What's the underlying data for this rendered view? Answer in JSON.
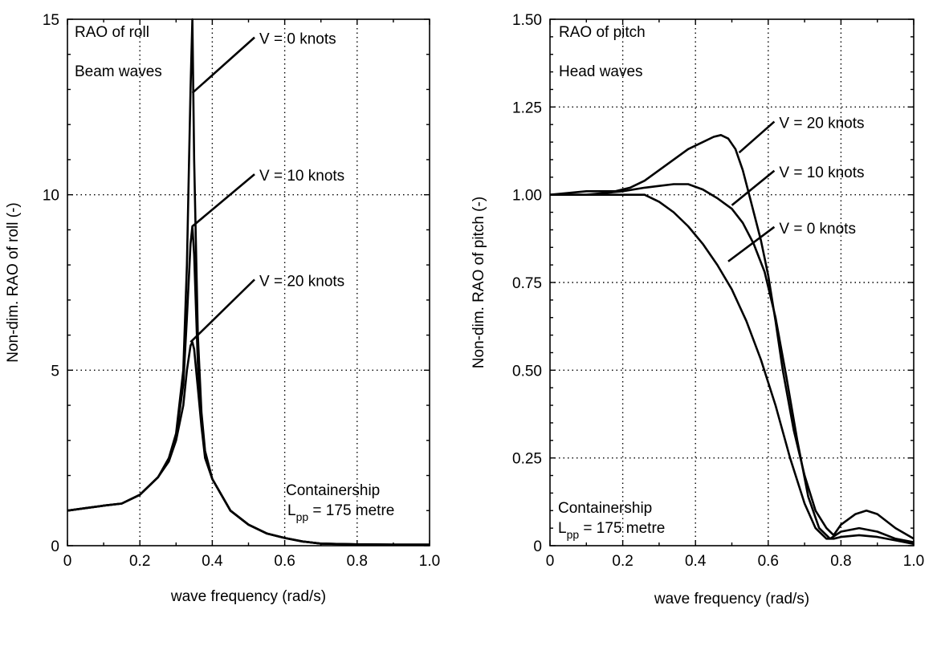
{
  "chart_data": [
    {
      "type": "line",
      "xlabel": "wave frequency (rad/s)",
      "ylabel": "Non-dim. RAO of roll (-)",
      "xlim": [
        0,
        1.0
      ],
      "ylim": [
        0,
        15
      ],
      "xticks": [
        0,
        0.2,
        0.4,
        0.6,
        0.8,
        1.0
      ],
      "xtick_labels": [
        "0",
        "0.2",
        "0.4",
        "0.6",
        "0.8",
        "1.0"
      ],
      "yticks": [
        0,
        5,
        10,
        15
      ],
      "ytick_labels": [
        "0",
        "5",
        "10",
        "15"
      ],
      "grid": true,
      "annotations": {
        "title_line1": "RAO of roll",
        "title_line2": "Beam waves",
        "ship_line1": "Containership",
        "ship_L": "L",
        "ship_sub": "pp",
        "ship_rest": " = 175 metre"
      },
      "series": [
        {
          "label": "V = 0 knots",
          "label_at": [
            0.53,
            14.3
          ],
          "leader_to": [
            0.345,
            12.9
          ],
          "x": [
            0,
            0.05,
            0.1,
            0.15,
            0.2,
            0.25,
            0.28,
            0.3,
            0.32,
            0.33,
            0.34,
            0.345,
            0.35,
            0.36,
            0.37,
            0.38,
            0.4,
            0.45,
            0.5,
            0.55,
            0.6,
            0.65,
            0.7,
            0.8,
            0.9,
            1.0
          ],
          "y": [
            1.0,
            1.07,
            1.14,
            1.2,
            1.45,
            1.95,
            2.5,
            3.2,
            5.0,
            8.0,
            13.0,
            15.0,
            11.0,
            6.0,
            3.8,
            2.7,
            1.9,
            1.0,
            0.6,
            0.35,
            0.22,
            0.12,
            0.06,
            0.04,
            0.03,
            0.03
          ]
        },
        {
          "label": "V = 10 knots",
          "label_at": [
            0.53,
            10.4
          ],
          "leader_to": [
            0.345,
            9.1
          ],
          "x": [
            0,
            0.05,
            0.1,
            0.15,
            0.2,
            0.25,
            0.28,
            0.3,
            0.32,
            0.33,
            0.34,
            0.345,
            0.35,
            0.36,
            0.37,
            0.38,
            0.4,
            0.45,
            0.5,
            0.55,
            0.6,
            0.65,
            0.7,
            0.8,
            0.9,
            1.0
          ],
          "y": [
            1.0,
            1.07,
            1.14,
            1.2,
            1.45,
            1.95,
            2.45,
            3.1,
            4.6,
            6.5,
            8.6,
            9.1,
            8.3,
            5.2,
            3.6,
            2.6,
            1.9,
            1.0,
            0.6,
            0.35,
            0.22,
            0.12,
            0.06,
            0.04,
            0.03,
            0.03
          ]
        },
        {
          "label": "V = 20 knots",
          "label_at": [
            0.53,
            7.4
          ],
          "leader_to": [
            0.34,
            5.8
          ],
          "x": [
            0,
            0.05,
            0.1,
            0.15,
            0.2,
            0.25,
            0.28,
            0.3,
            0.32,
            0.33,
            0.34,
            0.345,
            0.35,
            0.36,
            0.37,
            0.38,
            0.4,
            0.45,
            0.5,
            0.55,
            0.6,
            0.65,
            0.7,
            0.8,
            0.9,
            1.0
          ],
          "y": [
            1.0,
            1.07,
            1.14,
            1.2,
            1.45,
            1.95,
            2.4,
            3.0,
            4.0,
            5.0,
            5.7,
            5.8,
            5.6,
            4.5,
            3.4,
            2.5,
            1.9,
            1.0,
            0.6,
            0.35,
            0.22,
            0.12,
            0.06,
            0.04,
            0.03,
            0.03
          ]
        }
      ]
    },
    {
      "type": "line",
      "xlabel": "wave frequency (rad/s)",
      "ylabel": "Non-dim. RAO of pitch (-)",
      "xlim": [
        0,
        1.0
      ],
      "ylim": [
        0,
        1.5
      ],
      "xticks": [
        0,
        0.2,
        0.4,
        0.6,
        0.8,
        1.0
      ],
      "xtick_labels": [
        "0",
        "0.2",
        "0.4",
        "0.6",
        "0.8",
        "1.0"
      ],
      "yticks": [
        0,
        0.25,
        0.5,
        0.75,
        1.0,
        1.25,
        1.5
      ],
      "ytick_labels": [
        "0",
        "0.25",
        "0.50",
        "0.75",
        "1.00",
        "1.25",
        "1.50"
      ],
      "grid": true,
      "annotations": {
        "title_line1": "RAO of pitch",
        "title_line2": "Head waves",
        "ship_line1": "Containership",
        "ship_L": "L",
        "ship_sub": "pp",
        "ship_rest": " = 175 metre"
      },
      "series": [
        {
          "label": "V = 20 knots",
          "label_at": [
            0.63,
            1.19
          ],
          "leader_to": [
            0.52,
            1.12
          ],
          "x": [
            0,
            0.1,
            0.18,
            0.22,
            0.26,
            0.3,
            0.34,
            0.38,
            0.42,
            0.45,
            0.47,
            0.49,
            0.51,
            0.53,
            0.55,
            0.58,
            0.6,
            0.62,
            0.64,
            0.67,
            0.7,
            0.73,
            0.76,
            0.78,
            0.8,
            0.84,
            0.87,
            0.9,
            0.95,
            1.0
          ],
          "y": [
            1.0,
            1.01,
            1.01,
            1.02,
            1.04,
            1.07,
            1.1,
            1.13,
            1.15,
            1.165,
            1.17,
            1.16,
            1.13,
            1.07,
            0.99,
            0.87,
            0.77,
            0.64,
            0.5,
            0.33,
            0.2,
            0.1,
            0.05,
            0.03,
            0.06,
            0.09,
            0.1,
            0.09,
            0.05,
            0.02
          ]
        },
        {
          "label": "V = 10 knots",
          "label_at": [
            0.63,
            1.05
          ],
          "leader_to": [
            0.5,
            0.97
          ],
          "x": [
            0,
            0.1,
            0.2,
            0.26,
            0.3,
            0.34,
            0.38,
            0.42,
            0.46,
            0.5,
            0.53,
            0.56,
            0.59,
            0.62,
            0.65,
            0.68,
            0.71,
            0.74,
            0.77,
            0.8,
            0.85,
            0.9,
            0.95,
            1.0
          ],
          "y": [
            1.0,
            1.0,
            1.01,
            1.02,
            1.025,
            1.03,
            1.03,
            1.015,
            0.99,
            0.96,
            0.92,
            0.86,
            0.78,
            0.65,
            0.48,
            0.3,
            0.14,
            0.05,
            0.02,
            0.04,
            0.05,
            0.04,
            0.02,
            0.01
          ]
        },
        {
          "label": "V = 0 knots",
          "label_at": [
            0.63,
            0.89
          ],
          "leader_to": [
            0.49,
            0.81
          ],
          "x": [
            0,
            0.1,
            0.2,
            0.26,
            0.3,
            0.34,
            0.38,
            0.42,
            0.46,
            0.5,
            0.54,
            0.58,
            0.62,
            0.66,
            0.7,
            0.73,
            0.76,
            0.78,
            0.8,
            0.85,
            0.9,
            0.95,
            1.0
          ],
          "y": [
            1.0,
            1.0,
            1.0,
            1.0,
            0.98,
            0.95,
            0.91,
            0.86,
            0.8,
            0.73,
            0.64,
            0.53,
            0.4,
            0.25,
            0.12,
            0.05,
            0.02,
            0.02,
            0.025,
            0.03,
            0.025,
            0.015,
            0.005
          ]
        }
      ]
    }
  ]
}
